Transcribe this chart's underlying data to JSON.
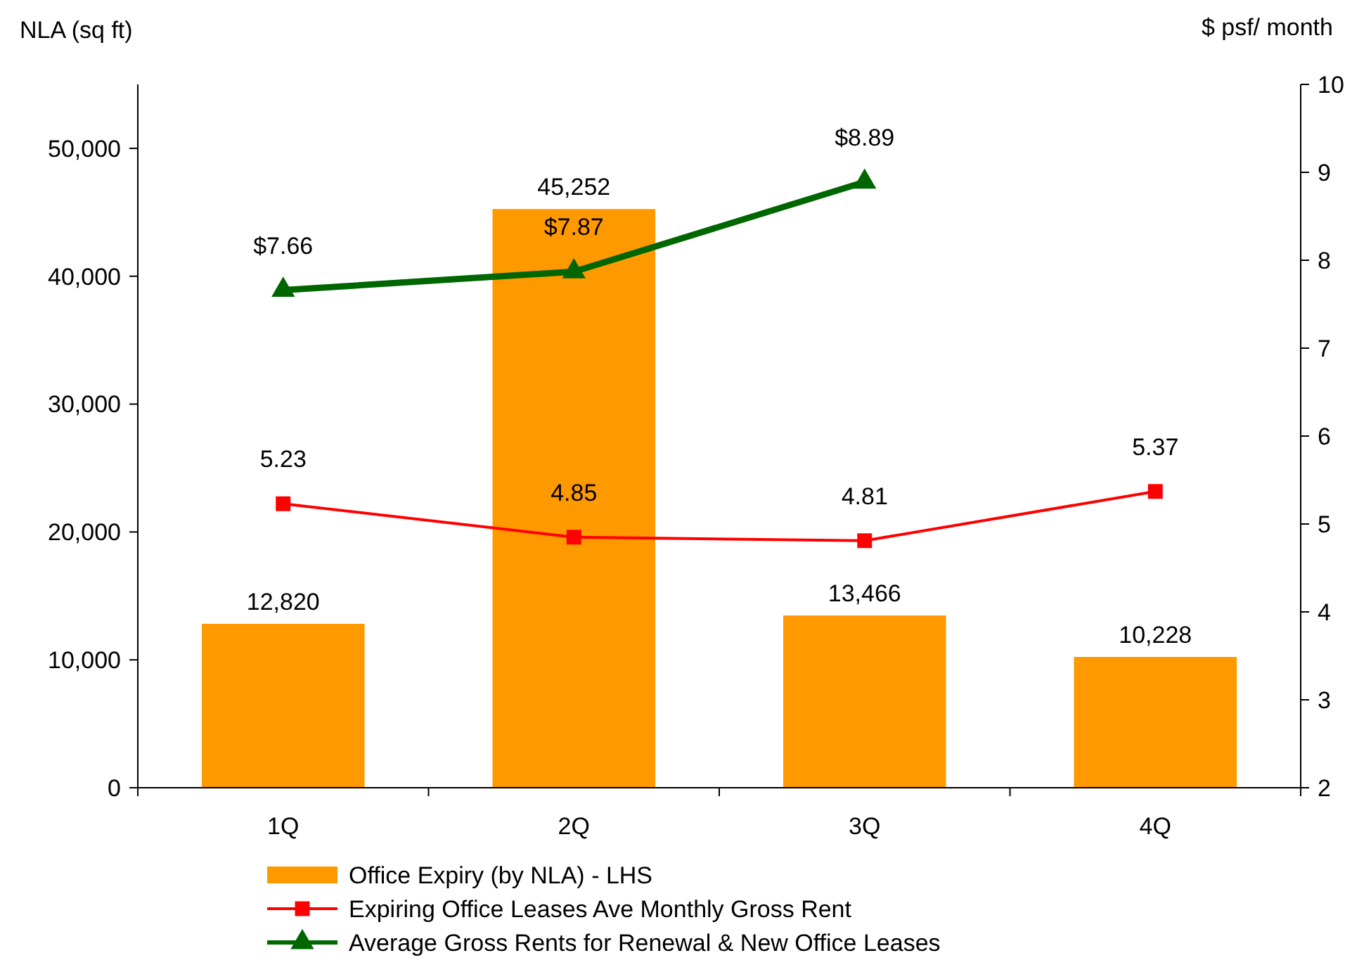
{
  "chart_data": {
    "type": "bar",
    "ylabel": "NLA (sq ft)",
    "y2label": "$ psf/ month",
    "categories": [
      "1Q",
      "2Q",
      "3Q",
      "4Q"
    ],
    "ylim": [
      0,
      55000
    ],
    "yticks": [
      {
        "value": 0,
        "label": "0"
      },
      {
        "value": 10000,
        "label": "10,000"
      },
      {
        "value": 20000,
        "label": "20,000"
      },
      {
        "value": 30000,
        "label": "30,000"
      },
      {
        "value": 40000,
        "label": "40,000"
      },
      {
        "value": 50000,
        "label": "50,000"
      }
    ],
    "y2lim": [
      2,
      10
    ],
    "y2ticks": [
      2,
      3,
      4,
      5,
      6,
      7,
      8,
      9,
      10
    ],
    "grid": false,
    "legend": "bottom",
    "series": [
      {
        "name": "Office Expiry (by NLA) - LHS",
        "color": "#ff9900",
        "values": [
          12820,
          45252,
          13466,
          10228
        ],
        "value_labels": [
          "12,820",
          "45,252",
          "13,466",
          "10,228"
        ]
      },
      {
        "type": "line",
        "axis": "y2",
        "name": "Expiring Office Leases Ave Monthly Gross Rent",
        "color": "#ff0000",
        "marker": "square",
        "values": [
          5.23,
          4.85,
          4.81,
          5.37
        ],
        "value_labels": [
          "5.23",
          "4.85",
          "4.81",
          "5.37"
        ]
      },
      {
        "type": "line",
        "axis": "y2",
        "name": "Average Gross Rents for Renewal & New Office Leases",
        "color": "#006600",
        "marker": "triangle",
        "values": [
          7.66,
          7.87,
          8.89,
          null
        ],
        "value_labels": [
          "$7.66",
          "$7.87",
          "$8.89",
          null
        ]
      }
    ]
  }
}
